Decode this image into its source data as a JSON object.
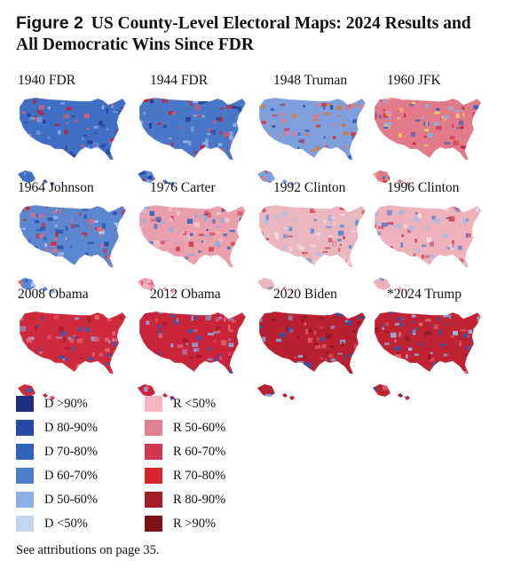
{
  "figure": {
    "label": "Figure 2",
    "title": "US County-Level Electoral Maps: 2024 Results and All Democratic Wins Since FDR"
  },
  "maps": [
    {
      "label": "1940 FDR",
      "palette": "dem_dark",
      "base": "#3f6fc4",
      "accents": [
        "#1f3f9a",
        "#e25a6e",
        "#c41e2e",
        "#8aa9e0"
      ]
    },
    {
      "label": "1944 FDR",
      "palette": "dem_dark",
      "base": "#4a78c8",
      "accents": [
        "#213f95",
        "#e05068",
        "#c82130",
        "#94b2e4"
      ]
    },
    {
      "label": "1948 Truman",
      "palette": "mixed",
      "base": "#7fa0dc",
      "accents": [
        "#2c55b0",
        "#e8788a",
        "#d23a4a",
        "#e07a28"
      ]
    },
    {
      "label": "1960 JFK",
      "palette": "mixed_red",
      "base": "#e27a8a",
      "accents": [
        "#3863bd",
        "#c9283a",
        "#f2d36b",
        "#8faee2"
      ]
    },
    {
      "label": "1964 Johnson",
      "palette": "dem",
      "base": "#5d86d0",
      "accents": [
        "#2a52ad",
        "#b9ccee",
        "#c9283a",
        "#e46b7c"
      ]
    },
    {
      "label": "1976 Carter",
      "palette": "mixed",
      "base": "#e9a0ac",
      "accents": [
        "#3562bb",
        "#d24556",
        "#8eaee3",
        "#f3c5cc"
      ]
    },
    {
      "label": "1992 Clinton",
      "palette": "light",
      "base": "#eab6c0",
      "accents": [
        "#5c87d1",
        "#d44e60",
        "#a9c1ea",
        "#f6d7dc"
      ]
    },
    {
      "label": "1996 Clinton",
      "palette": "light",
      "base": "#eeb2bd",
      "accents": [
        "#4b79c9",
        "#d04254",
        "#a3bce8",
        "#f7dbe0"
      ]
    },
    {
      "label": "2008 Obama",
      "palette": "rep",
      "base": "#cf2a3c",
      "accents": [
        "#2f5cb8",
        "#e36677",
        "#a31d2b",
        "#8daee3"
      ]
    },
    {
      "label": "2012 Obama",
      "palette": "rep",
      "base": "#c9243a",
      "accents": [
        "#2d59b6",
        "#df5d70",
        "#9e1b2a",
        "#88a9e1"
      ]
    },
    {
      "label": "2020 Biden",
      "palette": "rep_dark",
      "base": "#b81f30",
      "accents": [
        "#2b57b4",
        "#de5769",
        "#8e1824",
        "#86a7e0"
      ]
    },
    {
      "label": "*2024 Trump",
      "palette": "rep_dark",
      "base": "#bf2233",
      "accents": [
        "#2c58b5",
        "#e36172",
        "#8d1723",
        "#9ab5e6"
      ]
    }
  ],
  "legend": {
    "democratic": [
      {
        "label": "D >90%",
        "color": "#1f2f80"
      },
      {
        "label": "D 80-90%",
        "color": "#2748a5"
      },
      {
        "label": "D 70-80%",
        "color": "#3164b9"
      },
      {
        "label": "D 60-70%",
        "color": "#4d7fcc"
      },
      {
        "label": "D 50-60%",
        "color": "#8fb0e4"
      },
      {
        "label": "D <50%",
        "color": "#c3d6f2"
      }
    ],
    "republican": [
      {
        "label": "R <50%",
        "color": "#f4b7c1"
      },
      {
        "label": "R 50-60%",
        "color": "#e3808f"
      },
      {
        "label": "R 60-70%",
        "color": "#d13850"
      },
      {
        "label": "R 70-80%",
        "color": "#d8242c"
      },
      {
        "label": "R 80-90%",
        "color": "#a51e27"
      },
      {
        "label": "R >90%",
        "color": "#7c1217"
      }
    ]
  },
  "attribution": "See attributions on page 35."
}
